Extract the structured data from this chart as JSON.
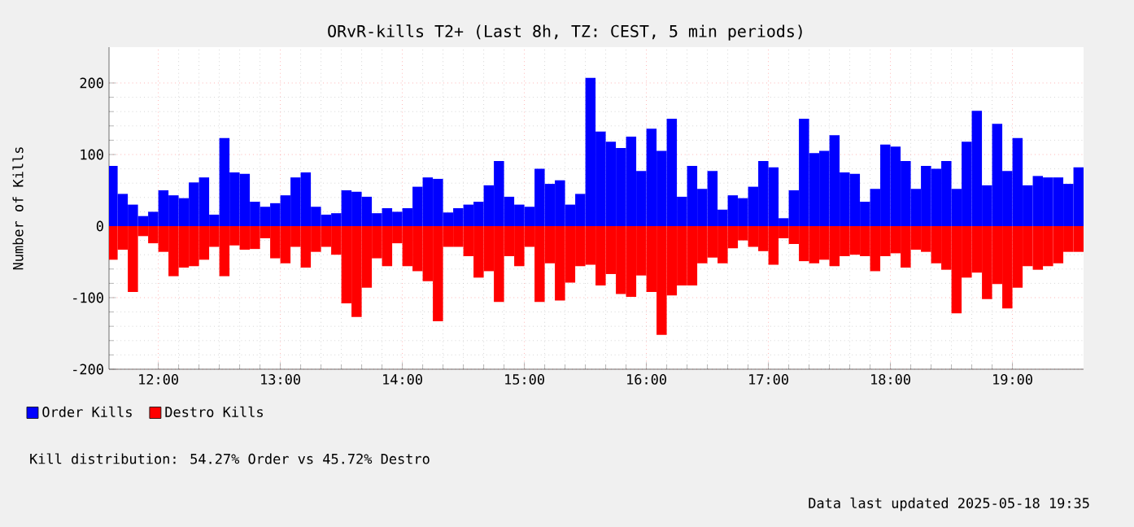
{
  "chart_data": {
    "type": "bar",
    "title": "ORvR-kills T2+ (Last 8h, TZ: CEST, 5 min periods)",
    "ylabel": "Number of Kills",
    "x": [
      11.625,
      11.7083,
      11.7917,
      11.875,
      11.9583,
      12.0417,
      12.125,
      12.2083,
      12.2917,
      12.375,
      12.4583,
      12.5417,
      12.625,
      12.7083,
      12.7917,
      12.875,
      12.9583,
      13.0417,
      13.125,
      13.2083,
      13.2917,
      13.375,
      13.4583,
      13.5417,
      13.625,
      13.7083,
      13.7917,
      13.875,
      13.9583,
      14.0417,
      14.125,
      14.2083,
      14.2917,
      14.375,
      14.4583,
      14.5417,
      14.625,
      14.7083,
      14.7917,
      14.875,
      14.9583,
      15.0417,
      15.125,
      15.2083,
      15.2917,
      15.375,
      15.4583,
      15.5417,
      15.625,
      15.7083,
      15.7917,
      15.875,
      15.9583,
      16.0417,
      16.125,
      16.2083,
      16.2917,
      16.375,
      16.4583,
      16.5417,
      16.625,
      16.7083,
      16.7917,
      16.875,
      16.9583,
      17.0417,
      17.125,
      17.2083,
      17.2917,
      17.375,
      17.4583,
      17.5417,
      17.625,
      17.7083,
      17.7917,
      17.875,
      17.9583,
      18.0417,
      18.125,
      18.2083,
      18.2917,
      18.375,
      18.4583,
      18.5417,
      18.625,
      18.7083,
      18.7917,
      18.875,
      18.9583,
      19.0417,
      19.125,
      19.2083,
      19.2917,
      19.375,
      19.4583,
      19.5417
    ],
    "xlim": [
      11.596,
      19.583
    ],
    "xticks": [
      {
        "value": 12,
        "label": "12:00"
      },
      {
        "value": 13,
        "label": "13:00"
      },
      {
        "value": 14,
        "label": "14:00"
      },
      {
        "value": 15,
        "label": "15:00"
      },
      {
        "value": 16,
        "label": "16:00"
      },
      {
        "value": 17,
        "label": "17:00"
      },
      {
        "value": 18,
        "label": "18:00"
      },
      {
        "value": 19,
        "label": "19:00"
      }
    ],
    "ylim": [
      -200,
      250
    ],
    "yticks": [
      -200,
      -100,
      0,
      100,
      200
    ],
    "grid": true,
    "legend": "bottom",
    "stacked": true,
    "series": [
      {
        "name": "Order Kills",
        "color": "#0000ff",
        "values": [
          84,
          45,
          30,
          14,
          20,
          50,
          43,
          39,
          61,
          68,
          16,
          123,
          75,
          73,
          34,
          27,
          32,
          43,
          68,
          75,
          27,
          16,
          18,
          50,
          48,
          41,
          18,
          25,
          20,
          25,
          55,
          68,
          66,
          19,
          25,
          30,
          34,
          57,
          91,
          41,
          30,
          27,
          80,
          59,
          64,
          30,
          45,
          207,
          132,
          118,
          109,
          125,
          77,
          136,
          105,
          150,
          41,
          84,
          52,
          77,
          23,
          43,
          39,
          55,
          91,
          82,
          11,
          50,
          150,
          102,
          105,
          127,
          75,
          73,
          34,
          52,
          114,
          111,
          91,
          52,
          84,
          80,
          91,
          52,
          118,
          161,
          57,
          143,
          77,
          123,
          57,
          70,
          68,
          68,
          59,
          82
        ]
      },
      {
        "name": "Destro Kills",
        "color": "#ff0000",
        "values": [
          -47,
          -33,
          -92,
          -14,
          -24,
          -36,
          -70,
          -58,
          -56,
          -47,
          -29,
          -70,
          -27,
          -33,
          -32,
          -17,
          -45,
          -52,
          -29,
          -58,
          -36,
          -29,
          -40,
          -108,
          -127,
          -86,
          -45,
          -56,
          -24,
          -56,
          -63,
          -77,
          -133,
          -29,
          -29,
          -42,
          -72,
          -63,
          -106,
          -42,
          -56,
          -29,
          -106,
          -52,
          -104,
          -79,
          -56,
          -54,
          -83,
          -67,
          -95,
          -99,
          -69,
          -92,
          -152,
          -97,
          -83,
          -83,
          -52,
          -44,
          -52,
          -31,
          -20,
          -29,
          -35,
          -54,
          -17,
          -25,
          -49,
          -52,
          -47,
          -56,
          -42,
          -40,
          -42,
          -63,
          -42,
          -38,
          -58,
          -33,
          -36,
          -52,
          -61,
          -122,
          -72,
          -65,
          -102,
          -81,
          -115,
          -86,
          -56,
          -61,
          -56,
          -52,
          -36,
          -36
        ]
      }
    ],
    "annotations": [
      "Kill distribution: 54.27% Order vs 45.72% Destro",
      "Data last updated 2025-05-18 19:35"
    ]
  }
}
